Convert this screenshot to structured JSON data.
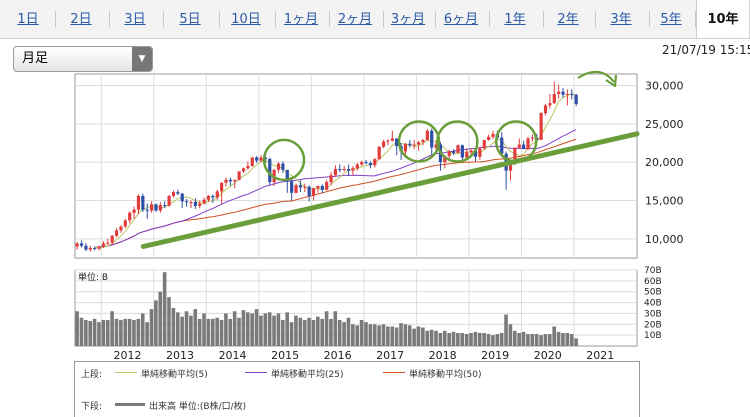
{
  "tabs": [
    {
      "label": "1日"
    },
    {
      "label": "2日"
    },
    {
      "label": "3日"
    },
    {
      "label": "5日"
    },
    {
      "label": "10日"
    },
    {
      "label": "1ヶ月"
    },
    {
      "label": "2ヶ月"
    },
    {
      "label": "3ヶ月"
    },
    {
      "label": "6ヶ月"
    },
    {
      "label": "1年"
    },
    {
      "label": "2年"
    },
    {
      "label": "3年"
    },
    {
      "label": "5年"
    },
    {
      "label": "10年"
    }
  ],
  "active_tab": "10年",
  "period_select": {
    "value": "月足"
  },
  "timestamp": "21/07/19 15:15",
  "legend": {
    "upper_label": "上段:",
    "sma5": "単純移動平均(5)",
    "sma25": "単純移動平均(25)",
    "sma50": "単純移動平均(50)",
    "lower_label": "下段:",
    "volume": "出来高 単位:(B株/口/枚)"
  },
  "colors": {
    "up": "#e03c3c",
    "down": "#2d4fa8",
    "sma5": "#b8c860",
    "sma25": "#8040c8",
    "sma50": "#d05020",
    "trend": "#6a9e3a",
    "volume": "#7a7a7a"
  },
  "chart_data": [
    {
      "type": "candlestick",
      "x_ticks": [
        "2012",
        "2013",
        "2014",
        "2015",
        "2016",
        "2017",
        "2018",
        "2019",
        "2020",
        "2021"
      ],
      "y_ticks": [
        "10,000",
        "15,000",
        "20,000",
        "25,000",
        "30,000"
      ],
      "ylim": [
        7500,
        31500
      ],
      "grid": true,
      "xstart": 2011.5,
      "months": [
        {
          "o": 9000,
          "h": 9600,
          "l": 8600,
          "c": 9400
        },
        {
          "o": 9400,
          "h": 9800,
          "l": 8900,
          "c": 9100
        },
        {
          "o": 9100,
          "h": 9400,
          "l": 8400,
          "c": 8600
        },
        {
          "o": 8600,
          "h": 9100,
          "l": 8300,
          "c": 8800
        },
        {
          "o": 8800,
          "h": 9000,
          "l": 8500,
          "c": 8700
        },
        {
          "o": 8700,
          "h": 9100,
          "l": 8500,
          "c": 9000
        },
        {
          "o": 9000,
          "h": 9700,
          "l": 8800,
          "c": 9400
        },
        {
          "o": 9400,
          "h": 10000,
          "l": 9200,
          "c": 9500
        },
        {
          "o": 9500,
          "h": 10500,
          "l": 9300,
          "c": 10400
        },
        {
          "o": 10400,
          "h": 11400,
          "l": 10200,
          "c": 11100
        },
        {
          "o": 11100,
          "h": 11800,
          "l": 10800,
          "c": 11600
        },
        {
          "o": 11600,
          "h": 12600,
          "l": 11400,
          "c": 12400
        },
        {
          "o": 12400,
          "h": 13600,
          "l": 12000,
          "c": 13400
        },
        {
          "o": 13400,
          "h": 14200,
          "l": 12600,
          "c": 13800
        },
        {
          "o": 13800,
          "h": 15800,
          "l": 13200,
          "c": 15600
        },
        {
          "o": 15600,
          "h": 15900,
          "l": 13500,
          "c": 13800
        },
        {
          "o": 13800,
          "h": 14600,
          "l": 12600,
          "c": 13700
        },
        {
          "o": 13700,
          "h": 14900,
          "l": 13400,
          "c": 14500
        },
        {
          "o": 14500,
          "h": 14600,
          "l": 13500,
          "c": 13700
        },
        {
          "o": 13700,
          "h": 14800,
          "l": 13400,
          "c": 14400
        },
        {
          "o": 14400,
          "h": 14900,
          "l": 14000,
          "c": 14300
        },
        {
          "o": 14300,
          "h": 15700,
          "l": 14200,
          "c": 15600
        },
        {
          "o": 15600,
          "h": 16300,
          "l": 15400,
          "c": 16100
        },
        {
          "o": 16100,
          "h": 16400,
          "l": 15700,
          "c": 15900
        },
        {
          "o": 15900,
          "h": 16000,
          "l": 14000,
          "c": 14900
        },
        {
          "o": 14900,
          "h": 15200,
          "l": 14200,
          "c": 14800
        },
        {
          "o": 14800,
          "h": 15000,
          "l": 14000,
          "c": 14800
        },
        {
          "o": 14800,
          "h": 15300,
          "l": 13900,
          "c": 14300
        },
        {
          "o": 14300,
          "h": 15000,
          "l": 14000,
          "c": 14600
        },
        {
          "o": 14600,
          "h": 15400,
          "l": 14500,
          "c": 15100
        },
        {
          "o": 15100,
          "h": 15700,
          "l": 14800,
          "c": 15600
        },
        {
          "o": 15600,
          "h": 15800,
          "l": 14700,
          "c": 15400
        },
        {
          "o": 15400,
          "h": 16400,
          "l": 15100,
          "c": 16200
        },
        {
          "o": 16200,
          "h": 17400,
          "l": 14600,
          "c": 17300
        },
        {
          "o": 17300,
          "h": 18000,
          "l": 16800,
          "c": 17700
        },
        {
          "o": 17700,
          "h": 18000,
          "l": 16900,
          "c": 17500
        },
        {
          "o": 17500,
          "h": 17700,
          "l": 16600,
          "c": 17700
        },
        {
          "o": 17700,
          "h": 18800,
          "l": 17600,
          "c": 18800
        },
        {
          "o": 18800,
          "h": 19300,
          "l": 18600,
          "c": 19200
        },
        {
          "o": 19200,
          "h": 20100,
          "l": 19000,
          "c": 19500
        },
        {
          "o": 19500,
          "h": 20700,
          "l": 19400,
          "c": 20600
        },
        {
          "o": 20600,
          "h": 20800,
          "l": 19900,
          "c": 20200
        },
        {
          "o": 20200,
          "h": 20900,
          "l": 20000,
          "c": 20600
        },
        {
          "o": 20600,
          "h": 20900,
          "l": 19800,
          "c": 20400
        },
        {
          "o": 20400,
          "h": 20600,
          "l": 17000,
          "c": 17400
        },
        {
          "o": 17400,
          "h": 19100,
          "l": 16900,
          "c": 19000
        },
        {
          "o": 19000,
          "h": 20000,
          "l": 18600,
          "c": 19800
        },
        {
          "o": 19800,
          "h": 20100,
          "l": 18600,
          "c": 19000
        },
        {
          "o": 19000,
          "h": 19000,
          "l": 16000,
          "c": 17500
        },
        {
          "o": 17500,
          "h": 17900,
          "l": 15000,
          "c": 16000
        },
        {
          "o": 16000,
          "h": 17200,
          "l": 15900,
          "c": 17000
        },
        {
          "o": 17000,
          "h": 17600,
          "l": 16100,
          "c": 16700
        },
        {
          "o": 16700,
          "h": 17200,
          "l": 16100,
          "c": 16800
        },
        {
          "o": 16800,
          "h": 17000,
          "l": 14900,
          "c": 15600
        },
        {
          "o": 15600,
          "h": 16700,
          "l": 15000,
          "c": 16600
        },
        {
          "o": 16600,
          "h": 16800,
          "l": 16000,
          "c": 16900
        },
        {
          "o": 16900,
          "h": 17100,
          "l": 16000,
          "c": 16400
        },
        {
          "o": 16400,
          "h": 17700,
          "l": 16300,
          "c": 17400
        },
        {
          "o": 17400,
          "h": 18700,
          "l": 17000,
          "c": 18300
        },
        {
          "o": 18300,
          "h": 19600,
          "l": 18100,
          "c": 19100
        },
        {
          "o": 19100,
          "h": 19700,
          "l": 18700,
          "c": 19000
        },
        {
          "o": 19000,
          "h": 19500,
          "l": 18800,
          "c": 19100
        },
        {
          "o": 19100,
          "h": 19700,
          "l": 18200,
          "c": 18900
        },
        {
          "o": 18900,
          "h": 19500,
          "l": 18300,
          "c": 19200
        },
        {
          "o": 19200,
          "h": 19900,
          "l": 18900,
          "c": 19700
        },
        {
          "o": 19700,
          "h": 20200,
          "l": 19500,
          "c": 20000
        },
        {
          "o": 20000,
          "h": 20300,
          "l": 19700,
          "c": 19900
        },
        {
          "o": 19900,
          "h": 20100,
          "l": 19200,
          "c": 19600
        },
        {
          "o": 19600,
          "h": 20500,
          "l": 19300,
          "c": 20400
        },
        {
          "o": 20400,
          "h": 22100,
          "l": 20300,
          "c": 22000
        },
        {
          "o": 22000,
          "h": 22900,
          "l": 21800,
          "c": 22700
        },
        {
          "o": 22700,
          "h": 23000,
          "l": 22200,
          "c": 22800
        },
        {
          "o": 22800,
          "h": 24100,
          "l": 22700,
          "c": 23100
        },
        {
          "o": 23100,
          "h": 23100,
          "l": 20900,
          "c": 22100
        },
        {
          "o": 22100,
          "h": 22500,
          "l": 20300,
          "c": 21400
        },
        {
          "o": 21400,
          "h": 22500,
          "l": 21000,
          "c": 22400
        },
        {
          "o": 22400,
          "h": 22900,
          "l": 21900,
          "c": 22200
        },
        {
          "o": 22200,
          "h": 22900,
          "l": 21700,
          "c": 22300
        },
        {
          "o": 22300,
          "h": 22800,
          "l": 21500,
          "c": 22600
        },
        {
          "o": 22600,
          "h": 23000,
          "l": 22200,
          "c": 22900
        },
        {
          "o": 22900,
          "h": 24300,
          "l": 22800,
          "c": 24100
        },
        {
          "o": 24100,
          "h": 24400,
          "l": 21000,
          "c": 21900
        },
        {
          "o": 21900,
          "h": 22700,
          "l": 21200,
          "c": 22300
        },
        {
          "o": 22300,
          "h": 22600,
          "l": 18900,
          "c": 20000
        },
        {
          "o": 20000,
          "h": 20800,
          "l": 19200,
          "c": 20800
        },
        {
          "o": 20800,
          "h": 21600,
          "l": 20300,
          "c": 21400
        },
        {
          "o": 21400,
          "h": 21700,
          "l": 20900,
          "c": 21200
        },
        {
          "o": 21200,
          "h": 22300,
          "l": 21200,
          "c": 22200
        },
        {
          "o": 22200,
          "h": 22300,
          "l": 20300,
          "c": 20600
        },
        {
          "o": 20600,
          "h": 21800,
          "l": 20400,
          "c": 21300
        },
        {
          "o": 21300,
          "h": 21800,
          "l": 20800,
          "c": 21500
        },
        {
          "o": 21500,
          "h": 21500,
          "l": 20100,
          "c": 20700
        },
        {
          "o": 20700,
          "h": 22000,
          "l": 20300,
          "c": 21800
        },
        {
          "o": 21800,
          "h": 22900,
          "l": 21600,
          "c": 22900
        },
        {
          "o": 22900,
          "h": 23600,
          "l": 22800,
          "c": 23300
        },
        {
          "o": 23300,
          "h": 24100,
          "l": 23000,
          "c": 23700
        },
        {
          "o": 23700,
          "h": 24100,
          "l": 22900,
          "c": 23200
        },
        {
          "o": 23200,
          "h": 23900,
          "l": 21000,
          "c": 21100
        },
        {
          "o": 21100,
          "h": 21400,
          "l": 16400,
          "c": 18900
        },
        {
          "o": 18900,
          "h": 20300,
          "l": 17600,
          "c": 20200
        },
        {
          "o": 20200,
          "h": 21900,
          "l": 19600,
          "c": 21900
        },
        {
          "o": 21900,
          "h": 23100,
          "l": 21700,
          "c": 22300
        },
        {
          "o": 22300,
          "h": 22800,
          "l": 21700,
          "c": 21700
        },
        {
          "o": 21700,
          "h": 23300,
          "l": 21600,
          "c": 23100
        },
        {
          "o": 23100,
          "h": 23600,
          "l": 22700,
          "c": 23200
        },
        {
          "o": 23200,
          "h": 23700,
          "l": 22900,
          "c": 22900
        },
        {
          "o": 22900,
          "h": 26500,
          "l": 22900,
          "c": 26400
        },
        {
          "o": 26400,
          "h": 27600,
          "l": 26100,
          "c": 27400
        },
        {
          "o": 27400,
          "h": 28900,
          "l": 27000,
          "c": 27700
        },
        {
          "o": 27700,
          "h": 30500,
          "l": 27600,
          "c": 28900
        },
        {
          "o": 28900,
          "h": 30100,
          "l": 28300,
          "c": 29200
        },
        {
          "o": 29200,
          "h": 29700,
          "l": 28400,
          "c": 28800
        },
        {
          "o": 28800,
          "h": 29500,
          "l": 27400,
          "c": 28900
        },
        {
          "o": 28900,
          "h": 29500,
          "l": 28200,
          "c": 28800
        },
        {
          "o": 28800,
          "h": 28900,
          "l": 27300,
          "c": 27600
        }
      ],
      "circles": [
        {
          "x": 2015.48,
          "y": 20300
        },
        {
          "x": 2018.05,
          "y": 22700
        },
        {
          "x": 2018.78,
          "y": 22700
        },
        {
          "x": 2019.9,
          "y": 22700
        }
      ],
      "trendline": {
        "x": [
          2012.8,
          2022.2
        ],
        "y": [
          9000,
          23700
        ]
      }
    },
    {
      "type": "bar",
      "title": "単位: B",
      "y_ticks": [
        "70B",
        "60B",
        "50B",
        "40B",
        "30B",
        "20B",
        "10B"
      ],
      "ylim": [
        0,
        70
      ],
      "grid": true,
      "volumes": [
        32,
        26,
        24,
        23,
        25,
        22,
        24,
        24,
        32,
        25,
        24,
        25,
        25,
        24,
        25,
        30,
        22,
        34,
        42,
        50,
        68,
        45,
        35,
        31,
        27,
        32,
        28,
        34,
        25,
        30,
        25,
        25,
        26,
        24,
        30,
        25,
        32,
        26,
        33,
        31,
        30,
        34,
        28,
        30,
        31,
        28,
        30,
        24,
        31,
        22,
        28,
        26,
        24,
        26,
        24,
        27,
        25,
        32,
        25,
        32,
        24,
        22,
        26,
        20,
        19,
        24,
        22,
        20,
        20,
        19,
        20,
        18,
        18,
        17,
        21,
        20,
        19,
        16,
        18,
        17,
        14,
        15,
        14,
        12,
        14,
        12,
        13,
        12,
        12,
        11,
        12,
        13,
        12,
        12,
        11,
        10,
        11,
        12,
        29,
        20,
        14,
        12,
        13,
        11,
        11,
        11,
        10,
        11,
        11,
        18,
        13,
        12,
        12,
        11,
        7
      ]
    }
  ]
}
